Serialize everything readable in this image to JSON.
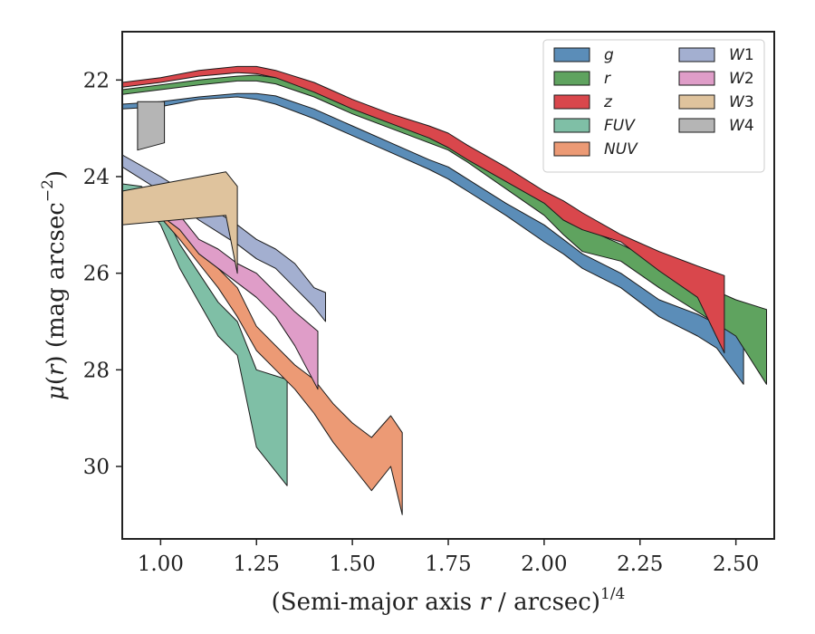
{
  "chart_data": {
    "type": "area",
    "xlabel": "(Semi-major axis r / arcsec)^1/4",
    "xlabel_parts": {
      "prefix": "(Semi-major axis ",
      "var": "r",
      "suffix": " / arcsec)",
      "sup": "1/4"
    },
    "ylabel": "μ(r) (mag arcsec^−2)",
    "ylabel_parts": {
      "mu": "μ",
      "open": "(",
      "var": "r",
      "close": ") (mag arcsec",
      "sup": "−2",
      "end": ")"
    },
    "xlim": [
      0.9,
      2.6
    ],
    "ylim": [
      31.5,
      21.0
    ],
    "y_inverted": true,
    "xticks": [
      1.0,
      1.25,
      1.5,
      1.75,
      2.0,
      2.25,
      2.5
    ],
    "xtick_labels": [
      "1.00",
      "1.25",
      "1.50",
      "1.75",
      "2.00",
      "2.25",
      "2.50"
    ],
    "yticks": [
      22,
      24,
      26,
      28,
      30
    ],
    "ytick_labels": [
      "22",
      "24",
      "26",
      "28",
      "30"
    ],
    "legend_position": "top-right",
    "legend_columns": 2,
    "series": [
      {
        "name": "g",
        "label_main": "g",
        "label_sub": "",
        "color": "#5b8db8",
        "x": [
          0.9,
          1.0,
          1.1,
          1.2,
          1.25,
          1.3,
          1.4,
          1.5,
          1.6,
          1.7,
          1.75,
          1.8,
          1.9,
          2.0,
          2.05,
          2.1,
          2.2,
          2.3,
          2.4,
          2.45,
          2.52
        ],
        "lower": [
          22.5,
          22.45,
          22.35,
          22.28,
          22.28,
          22.33,
          22.6,
          22.95,
          23.3,
          23.65,
          23.8,
          24.05,
          24.55,
          25.0,
          25.3,
          25.6,
          26.0,
          26.55,
          26.85,
          27.05,
          27.2
        ],
        "upper": [
          22.6,
          22.55,
          22.4,
          22.35,
          22.4,
          22.5,
          22.8,
          23.15,
          23.5,
          23.85,
          24.05,
          24.3,
          24.8,
          25.35,
          25.6,
          25.9,
          26.3,
          26.9,
          27.3,
          27.55,
          28.3
        ]
      },
      {
        "name": "r",
        "label_main": "r",
        "label_sub": "",
        "color": "#5fa35f",
        "x": [
          0.9,
          1.0,
          1.1,
          1.2,
          1.25,
          1.3,
          1.4,
          1.5,
          1.6,
          1.7,
          1.75,
          1.8,
          1.9,
          2.0,
          2.05,
          2.1,
          2.2,
          2.3,
          2.4,
          2.5,
          2.58
        ],
        "lower": [
          22.2,
          22.1,
          22.0,
          21.92,
          21.9,
          21.95,
          22.2,
          22.5,
          22.8,
          23.1,
          23.2,
          23.45,
          23.95,
          24.45,
          24.8,
          25.05,
          25.4,
          25.8,
          26.2,
          26.55,
          26.75
        ],
        "upper": [
          22.3,
          22.2,
          22.1,
          22.02,
          22.02,
          22.08,
          22.35,
          22.7,
          23.0,
          23.3,
          23.45,
          23.7,
          24.25,
          24.8,
          25.2,
          25.55,
          25.75,
          26.3,
          26.8,
          27.3,
          28.3
        ]
      },
      {
        "name": "z",
        "label_main": "z",
        "label_sub": "",
        "color": "#d9474c",
        "x": [
          0.9,
          1.0,
          1.1,
          1.2,
          1.25,
          1.3,
          1.4,
          1.5,
          1.6,
          1.7,
          1.75,
          1.8,
          1.9,
          2.0,
          2.05,
          2.1,
          2.2,
          2.3,
          2.4,
          2.47
        ],
        "lower": [
          22.05,
          21.95,
          21.8,
          21.72,
          21.72,
          21.8,
          22.05,
          22.4,
          22.7,
          22.95,
          23.1,
          23.35,
          23.8,
          24.3,
          24.5,
          24.75,
          25.2,
          25.55,
          25.85,
          26.05
        ],
        "upper": [
          22.15,
          22.05,
          21.92,
          21.85,
          21.87,
          21.95,
          22.25,
          22.6,
          22.9,
          23.2,
          23.4,
          23.65,
          24.1,
          24.55,
          24.9,
          25.1,
          25.35,
          25.95,
          26.5,
          27.65
        ]
      },
      {
        "name": "FUV",
        "label_main": "FUV",
        "label_sub": "",
        "color": "#7fbfa6",
        "x": [
          0.9,
          0.95,
          1.0,
          1.05,
          1.1,
          1.15,
          1.2,
          1.25,
          1.33
        ],
        "lower": [
          24.15,
          24.2,
          24.6,
          25.4,
          26.0,
          26.6,
          27.0,
          28.0,
          28.2
        ],
        "upper": [
          24.3,
          24.5,
          25.0,
          25.9,
          26.6,
          27.3,
          27.7,
          29.6,
          30.4
        ]
      },
      {
        "name": "NUV",
        "label_main": "NUV",
        "label_sub": "",
        "color": "#ec9a75",
        "x": [
          0.9,
          1.0,
          1.05,
          1.1,
          1.15,
          1.2,
          1.25,
          1.3,
          1.35,
          1.4,
          1.45,
          1.5,
          1.55,
          1.6,
          1.63
        ],
        "lower": [
          24.4,
          24.6,
          24.9,
          25.4,
          25.9,
          26.3,
          27.1,
          27.5,
          27.9,
          28.2,
          28.7,
          29.1,
          29.4,
          28.95,
          29.3
        ],
        "upper": [
          24.6,
          24.85,
          25.3,
          25.8,
          26.3,
          26.9,
          27.6,
          28.0,
          28.4,
          28.9,
          29.5,
          30.0,
          30.5,
          30.0,
          31.0
        ]
      },
      {
        "name": "W1",
        "label_main": "W",
        "label_sub": "1",
        "color": "#a3afd0",
        "x": [
          0.9,
          1.0,
          1.1,
          1.2,
          1.25,
          1.3,
          1.35,
          1.4,
          1.43
        ],
        "lower": [
          23.55,
          24.0,
          24.5,
          25.0,
          25.3,
          25.5,
          25.8,
          26.3,
          26.4
        ],
        "upper": [
          23.8,
          24.3,
          24.9,
          25.4,
          25.7,
          25.9,
          26.3,
          26.7,
          27.0
        ]
      },
      {
        "name": "W2",
        "label_main": "W",
        "label_sub": "2",
        "color": "#df9dc8",
        "x": [
          0.9,
          1.0,
          1.05,
          1.1,
          1.15,
          1.2,
          1.25,
          1.3,
          1.35,
          1.41
        ],
        "lower": [
          24.3,
          24.55,
          24.8,
          25.3,
          25.5,
          25.8,
          26.0,
          26.4,
          26.8,
          27.2
        ],
        "upper": [
          24.5,
          24.8,
          25.1,
          25.6,
          25.9,
          26.2,
          26.5,
          26.9,
          27.5,
          28.4
        ]
      },
      {
        "name": "W3",
        "label_main": "W",
        "label_sub": "3",
        "color": "#dfc39d",
        "x": [
          0.9,
          1.17,
          1.2
        ],
        "lower": [
          24.3,
          23.9,
          24.2
        ],
        "upper": [
          25.0,
          24.8,
          26.0
        ]
      },
      {
        "name": "W4",
        "label_main": "W",
        "label_sub": "4",
        "color": "#b5b5b5",
        "x": [
          0.94,
          1.01
        ],
        "lower": [
          22.45,
          22.45
        ],
        "upper": [
          23.45,
          23.3
        ]
      }
    ]
  }
}
